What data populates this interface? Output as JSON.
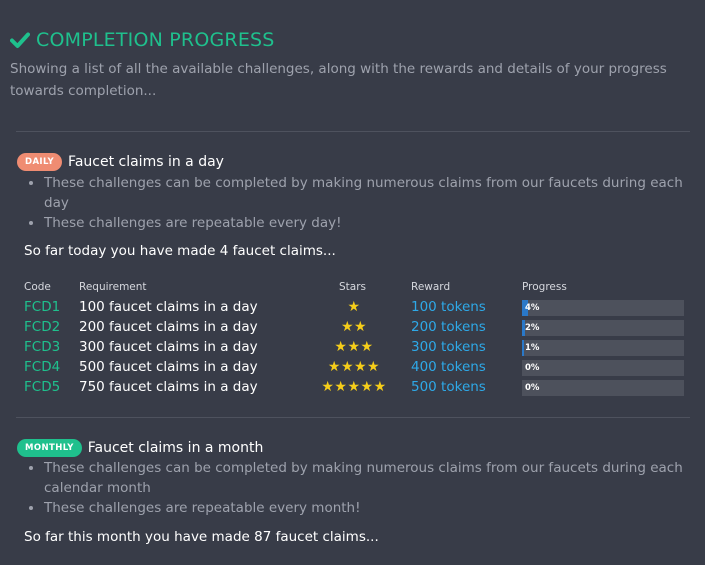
{
  "header": {
    "title": "COMPLETION PROGRESS",
    "icon": "check-icon",
    "intro": "Showing a list of all the available challenges, along with the rewards and details of your progress towards completion..."
  },
  "colors": {
    "accent_green": "#1fc08d",
    "daily_badge": "#ef8c72",
    "reward_blue": "#2ea9e8",
    "star_yellow": "#f5cd1a",
    "background": "#383c48"
  },
  "daily": {
    "badge": "DAILY",
    "title": "Faucet claims in a day",
    "notes": [
      "These challenges can be completed by making numerous claims from our faucets during each day",
      "These challenges are repeatable every day!"
    ],
    "status": "So far today you have made 4 faucet claims...",
    "table": {
      "headers": {
        "code": "Code",
        "requirement": "Requirement",
        "stars": "Stars",
        "reward": "Reward",
        "progress": "Progress"
      },
      "rows": [
        {
          "code": "FCD1",
          "requirement": "100 faucet claims in a day",
          "stars": 1,
          "reward": "100 tokens",
          "progress_label": "4%",
          "progress": 4
        },
        {
          "code": "FCD2",
          "requirement": "200 faucet claims in a day",
          "stars": 2,
          "reward": "200 tokens",
          "progress_label": "2%",
          "progress": 2
        },
        {
          "code": "FCD3",
          "requirement": "300 faucet claims in a day",
          "stars": 3,
          "reward": "300 tokens",
          "progress_label": "1%",
          "progress": 1
        },
        {
          "code": "FCD4",
          "requirement": "500 faucet claims in a day",
          "stars": 4,
          "reward": "400 tokens",
          "progress_label": "0%",
          "progress": 0
        },
        {
          "code": "FCD5",
          "requirement": "750 faucet claims in a day",
          "stars": 5,
          "reward": "500 tokens",
          "progress_label": "0%",
          "progress": 0
        }
      ]
    }
  },
  "monthly": {
    "badge": "MONTHLY",
    "title": "Faucet claims in a month",
    "notes": [
      "These challenges can be completed by making numerous claims from our faucets during each calendar month",
      "These challenges are repeatable every month!"
    ],
    "status": "So far this month you have made 87 faucet claims..."
  }
}
